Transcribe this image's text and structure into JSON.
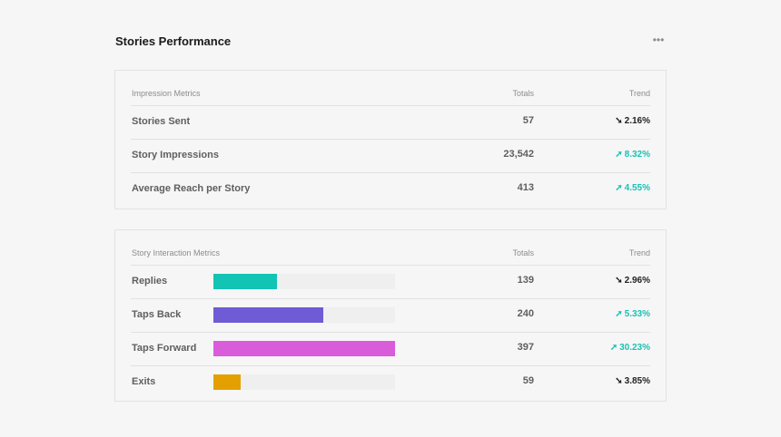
{
  "header": {
    "title": "Stories Performance",
    "more_icon": "•••"
  },
  "impression_table": {
    "headers": {
      "name": "Impression Metrics",
      "totals": "Totals",
      "trend": "Trend"
    },
    "rows": [
      {
        "name": "Stories Sent",
        "total": "57",
        "trend": "2.16%",
        "direction": "down",
        "arrow": "➘"
      },
      {
        "name": "Story Impressions",
        "total": "23,542",
        "trend": "8.32%",
        "direction": "up",
        "arrow": "➚"
      },
      {
        "name": "Average Reach per Story",
        "total": "413",
        "trend": "4.55%",
        "direction": "up",
        "arrow": "➚"
      }
    ]
  },
  "interaction_table": {
    "headers": {
      "name": "Story Interaction Metrics",
      "totals": "Totals",
      "trend": "Trend"
    },
    "rows": [
      {
        "name": "Replies",
        "total": "139",
        "value": 139,
        "trend": "2.96%",
        "direction": "down",
        "arrow": "➘",
        "color": "#12c4b4"
      },
      {
        "name": "Taps Back",
        "total": "240",
        "value": 240,
        "trend": "5.33%",
        "direction": "up",
        "arrow": "➚",
        "color": "#6f5bd6"
      },
      {
        "name": "Taps Forward",
        "total": "397",
        "value": 397,
        "trend": "30.23%",
        "direction": "up",
        "arrow": "➚",
        "color": "#d95ddb"
      },
      {
        "name": "Exits",
        "total": "59",
        "value": 59,
        "trend": "3.85%",
        "direction": "down",
        "arrow": "➘",
        "color": "#e3a000"
      }
    ],
    "bar_max": 397
  }
}
